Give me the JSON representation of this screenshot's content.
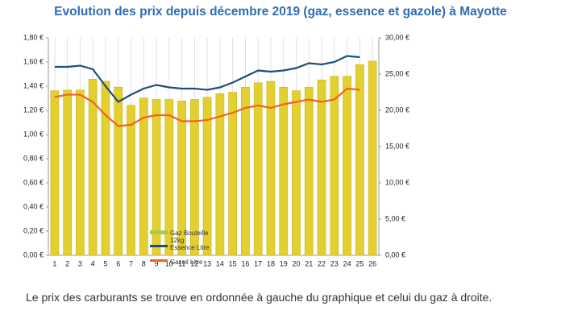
{
  "chart_data": {
    "type": "bar",
    "title": "Evolution des prix depuis décembre 2019 (gaz, essence et gazole) à Mayotte",
    "categories": [
      "1",
      "2",
      "3",
      "4",
      "5",
      "6",
      "7",
      "8",
      "9",
      "10",
      "11",
      "12",
      "13",
      "14",
      "15",
      "16",
      "17",
      "18",
      "19",
      "20",
      "21",
      "22",
      "23",
      "24",
      "25",
      "26"
    ],
    "series": [
      {
        "name": "Gaz Bouteille 12kg",
        "type": "bar",
        "axis": "y2",
        "color": "#e3cf2f",
        "legend_color": "#a8c94a",
        "values": [
          22.7,
          22.8,
          22.8,
          24.3,
          24.0,
          23.2,
          20.7,
          21.7,
          21.5,
          21.5,
          21.3,
          21.5,
          21.8,
          22.3,
          22.5,
          23.2,
          23.8,
          24.0,
          23.2,
          22.7,
          23.2,
          24.2,
          24.7,
          24.7,
          26.3,
          26.8
        ]
      },
      {
        "name": "Essence Litre",
        "type": "line",
        "color": "#1f4e79",
        "values": [
          1.56,
          1.56,
          1.57,
          1.54,
          1.4,
          1.27,
          1.33,
          1.38,
          1.41,
          1.39,
          1.38,
          1.38,
          1.37,
          1.39,
          1.43,
          1.48,
          1.53,
          1.52,
          1.53,
          1.55,
          1.59,
          1.58,
          1.6,
          1.65,
          1.64,
          null
        ]
      },
      {
        "name": "Gazoil Litre",
        "type": "line",
        "color": "#f0641e",
        "values": [
          1.31,
          1.33,
          1.33,
          1.27,
          1.16,
          1.07,
          1.08,
          1.14,
          1.16,
          1.16,
          1.11,
          1.11,
          1.12,
          1.15,
          1.18,
          1.22,
          1.24,
          1.22,
          1.25,
          1.27,
          1.29,
          1.27,
          1.29,
          1.38,
          1.37,
          null
        ]
      }
    ],
    "ylim": [
      0,
      1.8
    ],
    "yticks": [
      {
        "value": 0,
        "label": "0,00 €"
      },
      {
        "value": 0.2,
        "label": "0,20 €"
      },
      {
        "value": 0.4,
        "label": "0,40 €"
      },
      {
        "value": 0.6,
        "label": "0,60 €"
      },
      {
        "value": 0.8,
        "label": "0,80 €"
      },
      {
        "value": 1.0,
        "label": "1,00 €"
      },
      {
        "value": 1.2,
        "label": "1,20 €"
      },
      {
        "value": 1.4,
        "label": "1,40 €"
      },
      {
        "value": 1.6,
        "label": "1,60 €"
      },
      {
        "value": 1.8,
        "label": "1,80 €"
      }
    ],
    "y2lim": [
      0,
      30
    ],
    "y2ticks": [
      {
        "value": 0,
        "label": "0,00 €"
      },
      {
        "value": 5,
        "label": "5,00 €"
      },
      {
        "value": 10,
        "label": "10,00 €"
      },
      {
        "value": 15,
        "label": "15,00 €"
      },
      {
        "value": 20,
        "label": "20,00 €"
      },
      {
        "value": 25,
        "label": "25,00 €"
      },
      {
        "value": 30,
        "label": "30,00 €"
      }
    ],
    "grid": "x",
    "caption": "Le prix des carburants se trouve en ordonnée à gauche du graphique et celui du gaz à droite."
  }
}
